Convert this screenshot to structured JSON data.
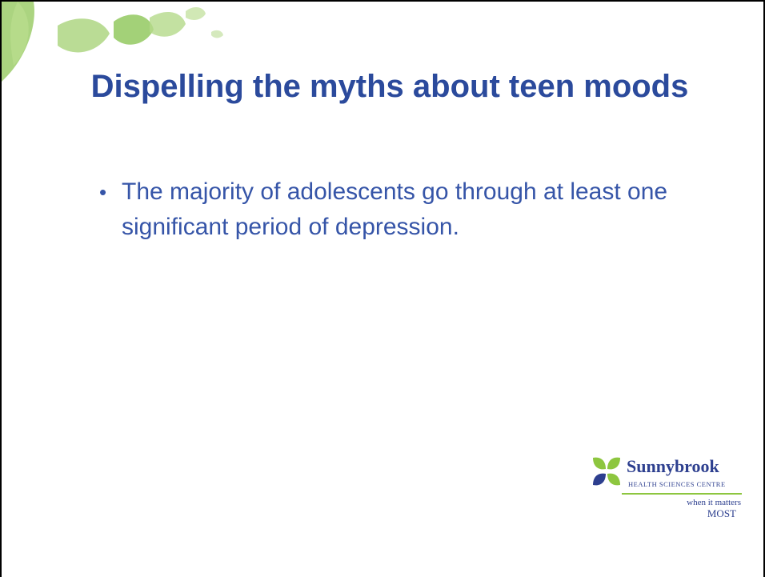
{
  "slide": {
    "title": "Dispelling the myths about teen moods",
    "bullets": [
      "The majority of adolescents go through at least one significant period of depression."
    ],
    "logo": {
      "name": "Sunnybrook",
      "subtitle": "HEALTH SCIENCES CENTRE",
      "tagline_small": "when it matters",
      "tagline_large": "MOST"
    }
  }
}
